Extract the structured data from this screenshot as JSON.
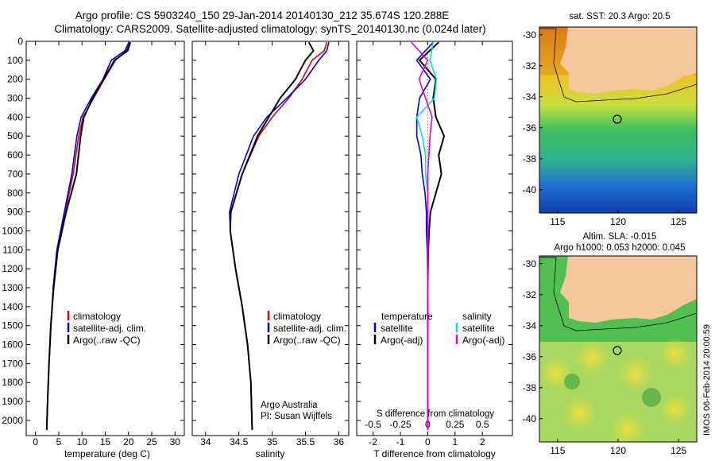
{
  "title": {
    "line1": "Argo profile: CS 5903240_150 29-Jan-2014 20140130_212 35.674S 120.288E",
    "line2": "Climatology: CARS2009. Satellite-adjusted climatology: synTS_20140130.nc (0.024d later)"
  },
  "colors": {
    "clim": "#e00000",
    "sat": "#0000e0",
    "argo": "#000000",
    "sal_sat": "#00e0e0",
    "sal_argo": "#e000e0",
    "land": "#f5c79c"
  },
  "chart_data": [
    {
      "type": "line",
      "id": "temperature",
      "xlabel": "temperature (deg C)",
      "ylabel": "",
      "xlim": [
        -2,
        32
      ],
      "ylim": [
        2080,
        0
      ],
      "xticks": [
        0,
        5,
        10,
        15,
        20,
        25,
        30
      ],
      "yticks": [
        0,
        100,
        200,
        300,
        400,
        500,
        600,
        700,
        800,
        900,
        1000,
        1100,
        1200,
        1300,
        1400,
        1500,
        1600,
        1700,
        1800,
        1900,
        2000
      ],
      "legend": [
        "climatology",
        "satellite-adj. clim.",
        "Argo(..raw -QC)"
      ],
      "series": [
        {
          "name": "climatology",
          "color": "clim",
          "depth": [
            5,
            50,
            100,
            200,
            300,
            400,
            500,
            700,
            900,
            1100,
            1300,
            1500,
            1700,
            1900,
            2050
          ],
          "values": [
            20.3,
            19.5,
            17.2,
            14.8,
            12.5,
            10.2,
            9.3,
            8.1,
            6.4,
            4.7,
            3.9,
            3.3,
            2.9,
            2.6,
            2.4
          ]
        },
        {
          "name": "satellite-adj. clim.",
          "color": "sat",
          "depth": [
            5,
            50,
            100,
            200,
            300,
            400,
            500,
            700,
            900,
            1100,
            1300,
            1500,
            1700,
            1900,
            2050
          ],
          "values": [
            20.1,
            19.2,
            16.3,
            14.5,
            12.0,
            9.8,
            8.9,
            7.8,
            6.2,
            4.6,
            3.8,
            3.3,
            2.9,
            2.6,
            2.4
          ]
        },
        {
          "name": "Argo(..raw -QC)",
          "color": "argo",
          "depth": [
            5,
            50,
            100,
            200,
            300,
            400,
            500,
            700,
            900,
            1100,
            1300,
            1500,
            1700,
            1900,
            2050
          ],
          "values": [
            20.4,
            19.8,
            17.0,
            14.6,
            12.3,
            10.4,
            9.7,
            8.8,
            6.6,
            4.8,
            3.9,
            3.3,
            2.9,
            2.6,
            2.4
          ]
        }
      ]
    },
    {
      "type": "line",
      "id": "salinity",
      "xlabel": "salinity",
      "ylabel": "",
      "xlim": [
        33.8,
        36.15
      ],
      "ylim": [
        2080,
        0
      ],
      "xticks": [
        34,
        34.5,
        35,
        35.5,
        36
      ],
      "legend": [
        "climatology",
        "satellite-adj. clim.",
        "Argo(..raw -QC)"
      ],
      "annotation": [
        "Argo Australia",
        "PI: Susan Wijffels"
      ],
      "series": [
        {
          "name": "climatology",
          "color": "clim",
          "depth": [
            5,
            50,
            100,
            200,
            300,
            400,
            500,
            700,
            900,
            1000,
            1200,
            1400,
            1600,
            1800,
            2050
          ],
          "values": [
            35.82,
            35.78,
            35.6,
            35.45,
            35.25,
            35.0,
            34.8,
            34.55,
            34.38,
            34.37,
            34.45,
            34.55,
            34.63,
            34.68,
            34.7
          ]
        },
        {
          "name": "satellite-adj. clim.",
          "color": "sat",
          "depth": [
            5,
            50,
            100,
            200,
            300,
            400,
            500,
            700,
            900,
            1000,
            1200,
            1400,
            1600,
            1800,
            2050
          ],
          "values": [
            35.85,
            35.82,
            35.7,
            35.5,
            35.22,
            34.92,
            34.72,
            34.5,
            34.36,
            34.37,
            34.45,
            34.55,
            34.63,
            34.68,
            34.7
          ]
        },
        {
          "name": "Argo(..raw -QC)",
          "color": "argo",
          "depth": [
            5,
            50,
            100,
            200,
            300,
            400,
            500,
            700,
            900,
            1000,
            1200,
            1400,
            1600,
            1800,
            2050
          ],
          "values": [
            35.55,
            35.62,
            35.5,
            35.35,
            35.12,
            34.95,
            34.78,
            34.55,
            34.38,
            34.37,
            34.45,
            34.55,
            34.63,
            34.68,
            34.7
          ]
        }
      ]
    },
    {
      "type": "line",
      "id": "difference",
      "xlabel": "T difference from climatology",
      "xlabel_top": "S difference from climatology",
      "xlim": [
        -2.6,
        3.1
      ],
      "ylim": [
        2080,
        0
      ],
      "xticks": [
        -2,
        -1,
        0,
        1,
        2
      ],
      "xticks_top": [
        -0.5,
        -0.25,
        0,
        0.25,
        0.5
      ],
      "legend_temp_title": "temperature",
      "legend_sal_title": "salinity",
      "legend": [
        "satellite",
        "Argo(-adj)",
        "satellite",
        "Argo(-adj)"
      ],
      "series": [
        {
          "name": "satellite",
          "color": "sat",
          "depth": [
            5,
            100,
            200,
            300,
            400,
            500,
            600,
            700,
            800,
            900,
            1000,
            1100,
            1300,
            1600,
            2050
          ],
          "values": [
            0.2,
            -0.4,
            0.1,
            -0.3,
            -0.4,
            -0.4,
            -0.25,
            -0.2,
            -0.1,
            -0.05,
            -0.05,
            -0.02,
            0,
            0,
            0
          ]
        },
        {
          "name": "Argo(-adj)",
          "color": "argo",
          "depth": [
            5,
            100,
            200,
            300,
            400,
            500,
            600,
            700,
            800,
            900,
            1000,
            1100,
            1300,
            1600,
            2050
          ],
          "values": [
            0.4,
            -0.3,
            0.3,
            0.2,
            0.3,
            0.6,
            0.4,
            0.5,
            0.3,
            0.1,
            0.05,
            0.02,
            0,
            0,
            0
          ]
        },
        {
          "name": "salinity satellite",
          "color": "sal_sat",
          "depth": [
            5,
            100,
            200,
            300,
            400,
            500,
            600,
            700,
            800,
            900,
            1000,
            1100,
            1300,
            1600,
            2050
          ],
          "values": [
            0.05,
            0.02,
            0.08,
            0.06,
            -0.1,
            -0.05,
            -0.02,
            -0.02,
            0.0,
            0.0,
            0,
            0,
            0,
            0,
            0
          ]
        },
        {
          "name": "salinity Argo(-adj)",
          "color": "sal_argo",
          "depth": [
            5,
            100,
            200,
            300,
            400,
            500,
            600,
            700,
            800,
            900,
            1000,
            1100,
            1300,
            1600,
            2050
          ],
          "values": [
            -0.15,
            0.0,
            -0.08,
            -0.02,
            0.04,
            0.02,
            0.01,
            0.0,
            0.0,
            0.0,
            0,
            0,
            0,
            0,
            0
          ]
        }
      ]
    },
    {
      "type": "heatmap",
      "id": "sst-map",
      "title": "sat. SST: 20.3 Argo: 20.5",
      "xlim": [
        113.5,
        126.5
      ],
      "ylim": [
        -41.5,
        -29.5
      ],
      "xticks": [
        115,
        120,
        125
      ],
      "yticks": [
        -30,
        -32,
        -34,
        -36,
        -38,
        -40
      ],
      "marker": {
        "lon": 120.288,
        "lat": -35.674
      }
    },
    {
      "type": "heatmap",
      "id": "sla-map",
      "title": "Altim. SLA: -0.015",
      "subtitle": "Argo h1000: 0.053 h2000: 0.045",
      "xlim": [
        113.5,
        126.5
      ],
      "ylim": [
        -41.5,
        -29.5
      ],
      "xticks": [
        115,
        120,
        125
      ],
      "yticks": [
        -30,
        -32,
        -34,
        -36,
        -38,
        -40
      ],
      "marker": {
        "lon": 120.288,
        "lat": -35.674
      }
    }
  ],
  "footer_stamp": "IMOS 06-Feb-2014 20:00:59"
}
